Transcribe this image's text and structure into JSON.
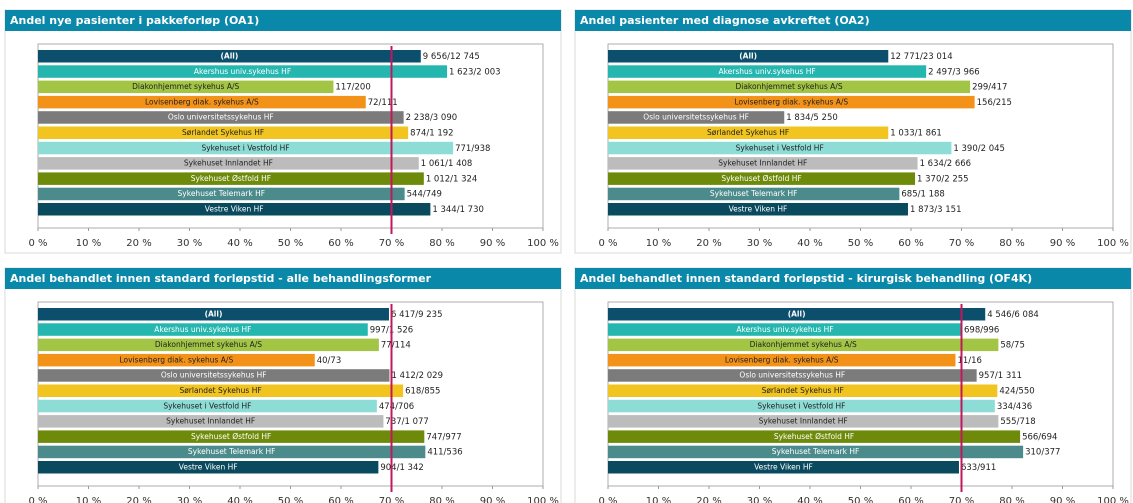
{
  "chart_data": [
    {
      "type": "hbar",
      "title": "Andel nye pasienter i pakkeforløp (OA1)",
      "categories": [
        "(All)",
        "Akershus univ.sykehus HF",
        "Diakonhjemmet sykehus A/S",
        "Lovisenberg diak. sykehus A/S",
        "Oslo universitetssykehus HF",
        "Sørlandet Sykehus HF",
        "Sykehuset i Vestfold HF",
        "Sykehuset Innlandet HF",
        "Sykehuset Østfold HF",
        "Sykehuset Telemark HF",
        "Vestre Viken HF"
      ],
      "values": [
        75.8,
        81.0,
        58.5,
        64.9,
        72.4,
        73.3,
        82.2,
        75.4,
        76.4,
        72.6,
        77.7
      ],
      "value_labels": [
        "9 656/12 745",
        "1 623/2 003",
        "117/200",
        "72/111",
        "2 238/3 090",
        "874/1 192",
        "771/938",
        "1 061/1 408",
        "1 012/1 324",
        "544/749",
        "1 344/1 730"
      ],
      "colors": [
        "#0b4f6c",
        "#25b7af",
        "#a2c545",
        "#f39218",
        "#7b7b7b",
        "#f2c41f",
        "#8edcd6",
        "#bcbcbc",
        "#6d8a0a",
        "#4b8b8c",
        "#0a4a5e"
      ],
      "xlim": [
        0,
        100
      ],
      "xticks": [
        {
          "value": 0,
          "label": "0 %"
        },
        {
          "value": 10,
          "label": "10 %"
        },
        {
          "value": 20,
          "label": "20 %"
        },
        {
          "value": 30,
          "label": "30 %"
        },
        {
          "value": 40,
          "label": "40 %"
        },
        {
          "value": 50,
          "label": "50 %"
        },
        {
          "value": 60,
          "label": "60 %"
        },
        {
          "value": 70,
          "label": "70 %"
        },
        {
          "value": 80,
          "label": "80 %"
        },
        {
          "value": 90,
          "label": "90 %"
        },
        {
          "value": 100,
          "label": "100 %"
        }
      ],
      "reference_line": 70,
      "reference_color": "#c2185b"
    },
    {
      "type": "hbar",
      "title": "Andel pasienter med diagnose avkreftet (OA2)",
      "categories": [
        "(All)",
        "Akershus univ.sykehus HF",
        "Diakonhjemmet sykehus A/S",
        "Lovisenberg diak. sykehus A/S",
        "Oslo universitetssykehus HF",
        "Sørlandet Sykehus HF",
        "Sykehuset i Vestfold HF",
        "Sykehuset Innlandet HF",
        "Sykehuset Østfold HF",
        "Sykehuset Telemark HF",
        "Vestre Viken HF"
      ],
      "values": [
        55.5,
        63.0,
        71.7,
        72.6,
        34.9,
        55.5,
        68.0,
        61.3,
        60.8,
        57.7,
        59.4
      ],
      "value_labels": [
        "12 771/23 014",
        "2 497/3 966",
        "299/417",
        "156/215",
        "1 834/5 250",
        "1 033/1 861",
        "1 390/2 045",
        "1 634/2 666",
        "1 370/2 255",
        "685/1 188",
        "1 873/3 151"
      ],
      "colors": [
        "#0b4f6c",
        "#25b7af",
        "#a2c545",
        "#f39218",
        "#7b7b7b",
        "#f2c41f",
        "#8edcd6",
        "#bcbcbc",
        "#6d8a0a",
        "#4b8b8c",
        "#0a4a5e"
      ],
      "xlim": [
        0,
        100
      ],
      "xticks": [
        {
          "value": 0,
          "label": "0 %"
        },
        {
          "value": 10,
          "label": "10 %"
        },
        {
          "value": 20,
          "label": "20 %"
        },
        {
          "value": 30,
          "label": "30 %"
        },
        {
          "value": 40,
          "label": "40 %"
        },
        {
          "value": 50,
          "label": "50 %"
        },
        {
          "value": 60,
          "label": "60 %"
        },
        {
          "value": 70,
          "label": "70 %"
        },
        {
          "value": 80,
          "label": "80 %"
        },
        {
          "value": 90,
          "label": "90 %"
        },
        {
          "value": 100,
          "label": "100 %"
        }
      ]
    },
    {
      "type": "hbar",
      "title": "Andel behandlet innen standard forløpstid - alle behandlingsformer",
      "categories": [
        "(All)",
        "Akershus univ.sykehus HF",
        "Diakonhjemmet sykehus A/S",
        "Lovisenberg diak. sykehus A/S",
        "Oslo universitetssykehus HF",
        "Sørlandet Sykehus HF",
        "Sykehuset i Vestfold HF",
        "Sykehuset Innlandet HF",
        "Sykehuset Østfold HF",
        "Sykehuset Telemark HF",
        "Vestre Viken HF"
      ],
      "values": [
        69.5,
        65.3,
        67.5,
        54.8,
        69.6,
        72.3,
        67.1,
        68.4,
        76.5,
        76.7,
        67.4
      ],
      "value_labels": [
        "6 417/9 235",
        "997/1 526",
        "77/114",
        "40/73",
        "1 412/2 029",
        "618/855",
        "474/706",
        "737/1 077",
        "747/977",
        "411/536",
        "904/1 342"
      ],
      "colors": [
        "#0b4f6c",
        "#25b7af",
        "#a2c545",
        "#f39218",
        "#7b7b7b",
        "#f2c41f",
        "#8edcd6",
        "#bcbcbc",
        "#6d8a0a",
        "#4b8b8c",
        "#0a4a5e"
      ],
      "xlim": [
        0,
        100
      ],
      "xticks": [
        {
          "value": 0,
          "label": "0 %"
        },
        {
          "value": 10,
          "label": "10 %"
        },
        {
          "value": 20,
          "label": "20 %"
        },
        {
          "value": 30,
          "label": "30 %"
        },
        {
          "value": 40,
          "label": "40 %"
        },
        {
          "value": 50,
          "label": "50 %"
        },
        {
          "value": 60,
          "label": "60 %"
        },
        {
          "value": 70,
          "label": "70 %"
        },
        {
          "value": 80,
          "label": "80 %"
        },
        {
          "value": 90,
          "label": "90 %"
        },
        {
          "value": 100,
          "label": "100 %"
        }
      ],
      "reference_line": 70,
      "reference_color": "#c2185b"
    },
    {
      "type": "hbar",
      "title": "Andel behandlet innen standard forløpstid - kirurgisk behandling (OF4K)",
      "categories": [
        "(All)",
        "Akershus univ.sykehus HF",
        "Diakonhjemmet sykehus A/S",
        "Lovisenberg diak. sykehus A/S",
        "Oslo universitetssykehus HF",
        "Sørlandet Sykehus HF",
        "Sykehuset i Vestfold HF",
        "Sykehuset Innlandet HF",
        "Sykehuset Østfold HF",
        "Sykehuset Telemark HF",
        "Vestre Viken HF"
      ],
      "values": [
        74.7,
        70.1,
        77.3,
        68.8,
        73.0,
        77.1,
        76.6,
        77.3,
        81.6,
        82.2,
        69.5
      ],
      "value_labels": [
        "4 546/6 084",
        "698/996",
        "58/75",
        "11/16",
        "957/1 311",
        "424/550",
        "334/436",
        "555/718",
        "566/694",
        "310/377",
        "633/911"
      ],
      "colors": [
        "#0b4f6c",
        "#25b7af",
        "#a2c545",
        "#f39218",
        "#7b7b7b",
        "#f2c41f",
        "#8edcd6",
        "#bcbcbc",
        "#6d8a0a",
        "#4b8b8c",
        "#0a4a5e"
      ],
      "xlim": [
        0,
        100
      ],
      "xticks": [
        {
          "value": 0,
          "label": "0 %"
        },
        {
          "value": 10,
          "label": "10 %"
        },
        {
          "value": 20,
          "label": "20 %"
        },
        {
          "value": 30,
          "label": "30 %"
        },
        {
          "value": 40,
          "label": "40 %"
        },
        {
          "value": 50,
          "label": "50 %"
        },
        {
          "value": 60,
          "label": "60 %"
        },
        {
          "value": 70,
          "label": "70 %"
        },
        {
          "value": 80,
          "label": "80 %"
        },
        {
          "value": 90,
          "label": "90 %"
        },
        {
          "value": 100,
          "label": "100 %"
        }
      ],
      "reference_line": 70,
      "reference_color": "#c2185b"
    }
  ]
}
